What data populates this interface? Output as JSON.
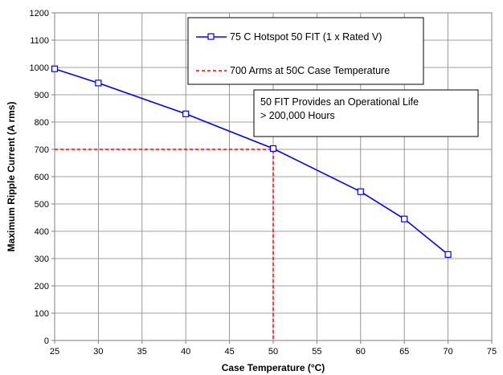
{
  "chart_data": {
    "type": "line",
    "xlabel": "Case Temperature (°C)",
    "ylabel": "Maximum Ripple Current (A rms)",
    "xlim": [
      25,
      75
    ],
    "ylim": [
      0,
      1200
    ],
    "x_ticks": [
      25,
      30,
      35,
      40,
      45,
      50,
      55,
      60,
      65,
      70,
      75
    ],
    "y_ticks": [
      0,
      100,
      200,
      300,
      400,
      500,
      600,
      700,
      800,
      900,
      1000,
      1100,
      1200
    ],
    "grid": true,
    "legend_position": "top-right",
    "series": [
      {
        "name": "75 C Hotspot 50 FIT (1 x Rated V)",
        "color": "#0000ff",
        "marker": "open-square",
        "x": [
          25,
          30,
          40,
          50,
          60,
          65,
          70
        ],
        "y": [
          995,
          943,
          830,
          703,
          545,
          445,
          315
        ]
      },
      {
        "name": "700 Arms at 50C Case Temperature",
        "color": "#ff0000",
        "style": "dashed",
        "x": [
          25,
          50,
          50
        ],
        "y": [
          700,
          700,
          0
        ]
      }
    ],
    "annotation": {
      "lines": [
        "50 FIT Provides an Operational Life",
        "> 200,000 Hours"
      ]
    }
  }
}
